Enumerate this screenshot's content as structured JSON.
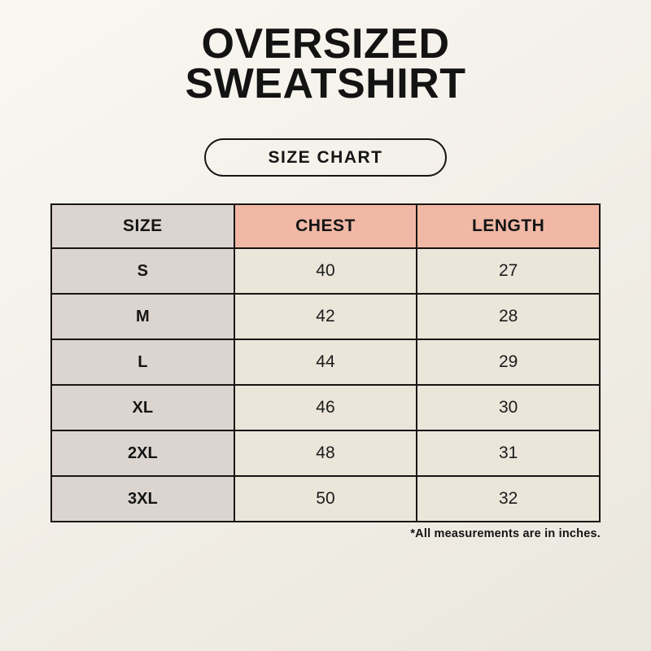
{
  "page": {
    "title_line1": "OVERSIZED",
    "title_line2": "SWEATSHIRT",
    "badge_label": "SIZE CHART",
    "footnote": "*All measurements are in inches."
  },
  "chart_data": {
    "type": "table",
    "title": "OVERSIZED SWEATSHIRT",
    "subtitle": "SIZE CHART",
    "columns": [
      "SIZE",
      "CHEST",
      "LENGTH"
    ],
    "rows": [
      [
        "S",
        40,
        27
      ],
      [
        "M",
        42,
        28
      ],
      [
        "L",
        44,
        29
      ],
      [
        "XL",
        46,
        30
      ],
      [
        "2XL",
        48,
        31
      ],
      [
        "3XL",
        50,
        32
      ]
    ],
    "units": "inches",
    "notes": "*All measurements are in inches."
  },
  "colors": {
    "background": "#f2efe8",
    "size_column_bg": "#dcd5cf",
    "measure_header_bg": "#f1b8a5",
    "data_cell_bg": "#ebe5da",
    "border": "#181512",
    "text": "#131313"
  }
}
